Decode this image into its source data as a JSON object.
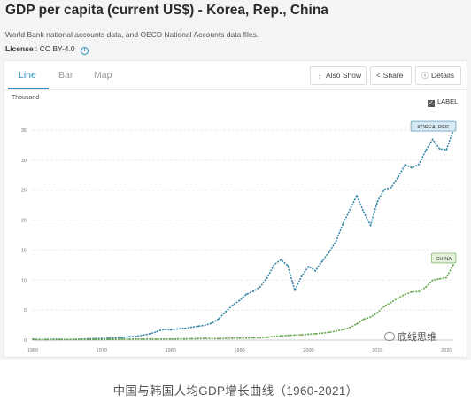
{
  "header": {
    "title": "GDP per capita (current US$) - Korea, Rep., China",
    "source": "World Bank national accounts data, and OECD National Accounts data files.",
    "license_label": "License",
    "license_value": ": CC BY-4.0"
  },
  "tabs": [
    {
      "label": "Line",
      "active": true
    },
    {
      "label": "Bar",
      "active": false
    },
    {
      "label": "Map",
      "active": false
    }
  ],
  "toolbar": {
    "also_show": "Also Show",
    "share": "Share",
    "details": "Details"
  },
  "unit_label": "Thousand",
  "label_toggle": {
    "label": "LABEL",
    "checked": true
  },
  "watermark": "底线思维",
  "caption": "中国与韩国人均GDP增长曲线（1960-2021）",
  "colors": {
    "korea": "#3b87a8",
    "china": "#6aa84f",
    "accent": "#2a8fbd"
  },
  "chart_data": {
    "type": "line",
    "x_ticks": [
      "1960",
      "1970",
      "1980",
      "1990",
      "2000",
      "2010",
      "2020"
    ],
    "y_ticks": [
      "0",
      "5",
      "10",
      "15",
      "20",
      "25",
      "30",
      "35"
    ],
    "ylim": [
      0,
      35
    ],
    "xlim": [
      1960,
      2021
    ],
    "grid": true,
    "series": [
      {
        "name": "KOREA, REP.",
        "color": "#3b87a8",
        "x": [
          1960,
          1961,
          1962,
          1963,
          1964,
          1965,
          1966,
          1967,
          1968,
          1969,
          1970,
          1971,
          1972,
          1973,
          1974,
          1975,
          1976,
          1977,
          1978,
          1979,
          1980,
          1981,
          1982,
          1983,
          1984,
          1985,
          1986,
          1987,
          1988,
          1989,
          1990,
          1991,
          1992,
          1993,
          1994,
          1995,
          1996,
          1997,
          1998,
          1999,
          2000,
          2001,
          2002,
          2003,
          2004,
          2005,
          2006,
          2007,
          2008,
          2009,
          2010,
          2011,
          2012,
          2013,
          2014,
          2015,
          2016,
          2017,
          2018,
          2019,
          2020,
          2021
        ],
        "y": [
          0.16,
          0.09,
          0.11,
          0.15,
          0.12,
          0.11,
          0.13,
          0.16,
          0.2,
          0.24,
          0.28,
          0.3,
          0.33,
          0.41,
          0.56,
          0.62,
          0.83,
          1.05,
          1.4,
          1.78,
          1.7,
          1.85,
          1.94,
          2.12,
          2.31,
          2.46,
          2.83,
          3.55,
          4.75,
          5.82,
          6.61,
          7.64,
          8.13,
          8.88,
          10.39,
          12.56,
          13.4,
          12.4,
          8.28,
          10.67,
          12.26,
          11.56,
          13.17,
          14.67,
          16.5,
          19.4,
          21.74,
          24.09,
          21.35,
          19.14,
          23.09,
          25.1,
          25.46,
          27.18,
          29.25,
          28.73,
          29.29,
          31.6,
          33.45,
          31.9,
          31.72,
          34.99
        ]
      },
      {
        "name": "CHINA",
        "color": "#6aa84f",
        "x": [
          1960,
          1961,
          1962,
          1963,
          1964,
          1965,
          1966,
          1967,
          1968,
          1969,
          1970,
          1971,
          1972,
          1973,
          1974,
          1975,
          1976,
          1977,
          1978,
          1979,
          1980,
          1981,
          1982,
          1983,
          1984,
          1985,
          1986,
          1987,
          1988,
          1989,
          1990,
          1991,
          1992,
          1993,
          1994,
          1995,
          1996,
          1997,
          1998,
          1999,
          2000,
          2001,
          2002,
          2003,
          2004,
          2005,
          2006,
          2007,
          2008,
          2009,
          2010,
          2011,
          2012,
          2013,
          2014,
          2015,
          2016,
          2017,
          2018,
          2019,
          2020,
          2021
        ],
        "y": [
          0.09,
          0.08,
          0.07,
          0.07,
          0.08,
          0.1,
          0.1,
          0.09,
          0.09,
          0.1,
          0.11,
          0.12,
          0.13,
          0.16,
          0.16,
          0.18,
          0.17,
          0.19,
          0.16,
          0.18,
          0.19,
          0.2,
          0.2,
          0.23,
          0.26,
          0.29,
          0.28,
          0.25,
          0.31,
          0.31,
          0.32,
          0.33,
          0.37,
          0.38,
          0.47,
          0.61,
          0.71,
          0.78,
          0.83,
          0.87,
          0.96,
          1.05,
          1.15,
          1.29,
          1.51,
          1.75,
          2.1,
          2.69,
          3.47,
          3.83,
          4.55,
          5.62,
          6.3,
          7.02,
          7.64,
          8.03,
          8.08,
          8.82,
          9.98,
          10.22,
          10.41,
          12.56
        ]
      }
    ]
  }
}
